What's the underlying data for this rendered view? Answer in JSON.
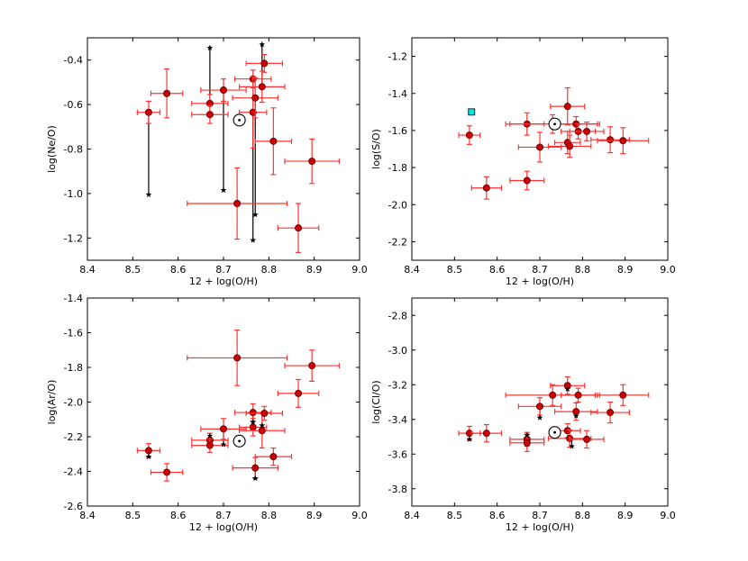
{
  "chart_data": [
    {
      "type": "scatter",
      "xlabel": "12 + log(O/H)",
      "ylabel": "log(Ne/O)",
      "xlim": [
        8.4,
        9.0
      ],
      "ylim": [
        -1.3,
        -0.3
      ],
      "xticks": [
        8.4,
        8.5,
        8.6,
        8.7,
        8.8,
        8.9,
        9.0
      ],
      "xtick_labels": [
        "8.4",
        "8.5",
        "8.6",
        "8.7",
        "8.8",
        "8.9",
        "9.0"
      ],
      "yticks": [
        -1.2,
        -1.0,
        -0.8,
        -0.6,
        -0.4
      ],
      "ytick_labels": [
        "-1.2",
        "-1.0",
        "-0.8",
        "-0.6",
        "-0.4"
      ],
      "series": [
        {
          "name": "data",
          "marker": "circle",
          "color": "#cc0000",
          "errorbar_color": "#ff3333",
          "points": [
            {
              "x": 8.535,
              "y": -0.635,
              "xerr": 0.025,
              "yerr": 0.05
            },
            {
              "x": 8.575,
              "y": -0.55,
              "xerr": 0.035,
              "yerr": 0.11
            },
            {
              "x": 8.67,
              "y": -0.595,
              "xerr": 0.04,
              "yerr": 0.04
            },
            {
              "x": 8.67,
              "y": -0.645,
              "xerr": 0.04,
              "yerr": 0.04
            },
            {
              "x": 8.7,
              "y": -0.535,
              "xerr": 0.05,
              "yerr": 0.05
            },
            {
              "x": 8.73,
              "y": -1.045,
              "xerr": 0.11,
              "yerr": 0.16
            },
            {
              "x": 8.765,
              "y": -0.485,
              "xerr": 0.04,
              "yerr": 0.04
            },
            {
              "x": 8.765,
              "y": -0.635,
              "xerr": 0.03,
              "yerr": 0.16
            },
            {
              "x": 8.77,
              "y": -0.57,
              "xerr": 0.05,
              "yerr": 0.09
            },
            {
              "x": 8.785,
              "y": -0.52,
              "xerr": 0.05,
              "yerr": 0.07
            },
            {
              "x": 8.79,
              "y": -0.415,
              "xerr": 0.04,
              "yerr": 0.04
            },
            {
              "x": 8.81,
              "y": -0.765,
              "xerr": 0.04,
              "yerr": 0.15
            },
            {
              "x": 8.865,
              "y": -1.155,
              "xerr": 0.045,
              "yerr": 0.11
            },
            {
              "x": 8.895,
              "y": -0.855,
              "xerr": 0.06,
              "yerr": 0.1
            }
          ]
        },
        {
          "name": "alternate",
          "marker": "star",
          "color": "#000000",
          "points": [
            {
              "x": 8.535,
              "y": -1.005,
              "link_y": -0.635
            },
            {
              "x": 8.67,
              "y": -0.345,
              "link_y": -0.595
            },
            {
              "x": 8.7,
              "y": -0.985,
              "link_y": -0.535
            },
            {
              "x": 8.765,
              "y": -1.21,
              "link_y": -0.635
            },
            {
              "x": 8.77,
              "y": -1.095,
              "link_y": -0.57
            },
            {
              "x": 8.785,
              "y": -0.33,
              "link_y": -0.52
            }
          ]
        },
        {
          "name": "solar",
          "marker": "sun",
          "color": "#000000",
          "points": [
            {
              "x": 8.735,
              "y": -0.67
            }
          ]
        }
      ]
    },
    {
      "type": "scatter",
      "xlabel": "12 + log(O/H)",
      "ylabel": "log(S/O)",
      "xlim": [
        8.4,
        9.0
      ],
      "ylim": [
        -2.3,
        -1.1
      ],
      "xticks": [
        8.4,
        8.5,
        8.6,
        8.7,
        8.8,
        8.9,
        9.0
      ],
      "xtick_labels": [
        "8.4",
        "8.5",
        "8.6",
        "8.7",
        "8.8",
        "8.9",
        "9.0"
      ],
      "yticks": [
        -2.2,
        -2.0,
        -1.8,
        -1.6,
        -1.4,
        -1.2
      ],
      "ytick_labels": [
        "-2.2",
        "-2.0",
        "-1.8",
        "-1.6",
        "-1.4",
        "-1.2"
      ],
      "series": [
        {
          "name": "data",
          "marker": "circle",
          "color": "#cc0000",
          "errorbar_color": "#ff3333",
          "points": [
            {
              "x": 8.535,
              "y": -1.625,
              "xerr": 0.025,
              "yerr": 0.05
            },
            {
              "x": 8.575,
              "y": -1.91,
              "xerr": 0.035,
              "yerr": 0.06
            },
            {
              "x": 8.67,
              "y": -1.87,
              "xerr": 0.04,
              "yerr": 0.05
            },
            {
              "x": 8.67,
              "y": -1.565,
              "xerr": 0.04,
              "yerr": 0.06
            },
            {
              "x": 8.7,
              "y": -1.69,
              "xerr": 0.05,
              "yerr": 0.08
            },
            {
              "x": 8.73,
              "y": -1.565,
              "xerr": 0.11,
              "yerr": 0.05
            },
            {
              "x": 8.765,
              "y": -1.47,
              "xerr": 0.04,
              "yerr": 0.1
            },
            {
              "x": 8.765,
              "y": -1.665,
              "xerr": 0.03,
              "yerr": 0.06
            },
            {
              "x": 8.77,
              "y": -1.685,
              "xerr": 0.05,
              "yerr": 0.06
            },
            {
              "x": 8.785,
              "y": -1.565,
              "xerr": 0.05,
              "yerr": 0.04
            },
            {
              "x": 8.79,
              "y": -1.605,
              "xerr": 0.04,
              "yerr": 0.04
            },
            {
              "x": 8.81,
              "y": -1.605,
              "xerr": 0.04,
              "yerr": 0.05
            },
            {
              "x": 8.865,
              "y": -1.65,
              "xerr": 0.045,
              "yerr": 0.07
            },
            {
              "x": 8.895,
              "y": -1.655,
              "xerr": 0.06,
              "yerr": 0.07
            }
          ]
        },
        {
          "name": "solar",
          "marker": "sun",
          "color": "#000000",
          "points": [
            {
              "x": 8.735,
              "y": -1.565
            }
          ]
        },
        {
          "name": "reference",
          "marker": "square",
          "color": "#00e5e5",
          "points": [
            {
              "x": 8.54,
              "y": -1.5
            }
          ]
        }
      ]
    },
    {
      "type": "scatter",
      "xlabel": "12 + log(O/H)",
      "ylabel": "log(Ar/O)",
      "xlim": [
        8.4,
        9.0
      ],
      "ylim": [
        -2.6,
        -1.4
      ],
      "xticks": [
        8.4,
        8.5,
        8.6,
        8.7,
        8.8,
        8.9,
        9.0
      ],
      "xtick_labels": [
        "8.4",
        "8.5",
        "8.6",
        "8.7",
        "8.8",
        "8.9",
        "9.0"
      ],
      "yticks": [
        -2.6,
        -2.4,
        -2.2,
        -2.0,
        -1.8,
        -1.6,
        -1.4
      ],
      "ytick_labels": [
        "-2.6",
        "-2.4",
        "-2.2",
        "-2.0",
        "-1.8",
        "-1.6",
        "-1.4"
      ],
      "series": [
        {
          "name": "data",
          "marker": "circle",
          "color": "#cc0000",
          "errorbar_color": "#ff3333",
          "points": [
            {
              "x": 8.535,
              "y": -2.28,
              "xerr": 0.025,
              "yerr": 0.04
            },
            {
              "x": 8.575,
              "y": -2.405,
              "xerr": 0.035,
              "yerr": 0.05
            },
            {
              "x": 8.67,
              "y": -2.22,
              "xerr": 0.04,
              "yerr": 0.04
            },
            {
              "x": 8.67,
              "y": -2.25,
              "xerr": 0.04,
              "yerr": 0.04
            },
            {
              "x": 8.7,
              "y": -2.155,
              "xerr": 0.05,
              "yerr": 0.06
            },
            {
              "x": 8.73,
              "y": -1.745,
              "xerr": 0.11,
              "yerr": 0.16
            },
            {
              "x": 8.765,
              "y": -2.06,
              "xerr": 0.04,
              "yerr": 0.05
            },
            {
              "x": 8.765,
              "y": -2.145,
              "xerr": 0.03,
              "yerr": 0.05
            },
            {
              "x": 8.77,
              "y": -2.38,
              "xerr": 0.05,
              "yerr": 0.06
            },
            {
              "x": 8.785,
              "y": -2.165,
              "xerr": 0.05,
              "yerr": 0.1
            },
            {
              "x": 8.79,
              "y": -2.065,
              "xerr": 0.04,
              "yerr": 0.04
            },
            {
              "x": 8.81,
              "y": -2.315,
              "xerr": 0.04,
              "yerr": 0.05
            },
            {
              "x": 8.865,
              "y": -1.95,
              "xerr": 0.045,
              "yerr": 0.08
            },
            {
              "x": 8.895,
              "y": -1.79,
              "xerr": 0.06,
              "yerr": 0.09
            }
          ]
        },
        {
          "name": "alternate",
          "marker": "star",
          "color": "#000000",
          "points": [
            {
              "x": 8.535,
              "y": -2.315,
              "link_y": -2.28
            },
            {
              "x": 8.67,
              "y": -2.195,
              "link_y": -2.22
            },
            {
              "x": 8.7,
              "y": -2.245,
              "link_y": -2.155
            },
            {
              "x": 8.765,
              "y": -2.115,
              "link_y": -2.06
            },
            {
              "x": 8.77,
              "y": -2.44,
              "link_y": -2.38
            },
            {
              "x": 8.785,
              "y": -2.135,
              "link_y": -2.165
            }
          ]
        },
        {
          "name": "solar",
          "marker": "sun",
          "color": "#000000",
          "points": [
            {
              "x": 8.735,
              "y": -2.225
            }
          ]
        }
      ]
    },
    {
      "type": "scatter",
      "xlabel": "12 + log(O/H)",
      "ylabel": "log(Cl/O)",
      "xlim": [
        8.4,
        9.0
      ],
      "ylim": [
        -3.9,
        -2.7
      ],
      "xticks": [
        8.4,
        8.5,
        8.6,
        8.7,
        8.8,
        8.9,
        9.0
      ],
      "xtick_labels": [
        "8.4",
        "8.5",
        "8.6",
        "8.7",
        "8.8",
        "8.9",
        "9.0"
      ],
      "yticks": [
        -3.8,
        -3.6,
        -3.4,
        -3.2,
        -3.0,
        -2.8
      ],
      "ytick_labels": [
        "-3.8",
        "-3.6",
        "-3.4",
        "-3.2",
        "-3.0",
        "-2.8"
      ],
      "series": [
        {
          "name": "data",
          "marker": "circle",
          "color": "#cc0000",
          "errorbar_color": "#ff3333",
          "points": [
            {
              "x": 8.535,
              "y": -3.48,
              "xerr": 0.025,
              "yerr": 0.04
            },
            {
              "x": 8.575,
              "y": -3.48,
              "xerr": 0.035,
              "yerr": 0.05
            },
            {
              "x": 8.67,
              "y": -3.515,
              "xerr": 0.04,
              "yerr": 0.04
            },
            {
              "x": 8.67,
              "y": -3.535,
              "xerr": 0.04,
              "yerr": 0.05
            },
            {
              "x": 8.7,
              "y": -3.325,
              "xerr": 0.05,
              "yerr": 0.05
            },
            {
              "x": 8.73,
              "y": -3.26,
              "xerr": 0.11,
              "yerr": 0.06
            },
            {
              "x": 8.765,
              "y": -3.205,
              "xerr": 0.04,
              "yerr": 0.05
            },
            {
              "x": 8.765,
              "y": -3.465,
              "xerr": 0.03,
              "yerr": 0.04
            },
            {
              "x": 8.77,
              "y": -3.51,
              "xerr": 0.05,
              "yerr": 0.05
            },
            {
              "x": 8.785,
              "y": -3.355,
              "xerr": 0.05,
              "yerr": 0.05
            },
            {
              "x": 8.79,
              "y": -3.26,
              "xerr": 0.04,
              "yerr": 0.04
            },
            {
              "x": 8.81,
              "y": -3.515,
              "xerr": 0.04,
              "yerr": 0.05
            },
            {
              "x": 8.865,
              "y": -3.36,
              "xerr": 0.045,
              "yerr": 0.06
            },
            {
              "x": 8.895,
              "y": -3.26,
              "xerr": 0.06,
              "yerr": 0.06
            }
          ]
        },
        {
          "name": "alternate",
          "marker": "star",
          "color": "#000000",
          "points": [
            {
              "x": 8.535,
              "y": -3.515,
              "link_y": -3.48
            },
            {
              "x": 8.67,
              "y": -3.49,
              "link_y": -3.515
            },
            {
              "x": 8.7,
              "y": -3.39,
              "link_y": -3.325
            },
            {
              "x": 8.765,
              "y": -3.225,
              "link_y": -3.205
            },
            {
              "x": 8.775,
              "y": -3.555,
              "link_y": -3.51
            },
            {
              "x": 8.785,
              "y": -3.38,
              "link_y": -3.355
            }
          ]
        },
        {
          "name": "solar",
          "marker": "sun",
          "color": "#000000",
          "points": [
            {
              "x": 8.735,
              "y": -3.475
            }
          ]
        }
      ]
    }
  ]
}
